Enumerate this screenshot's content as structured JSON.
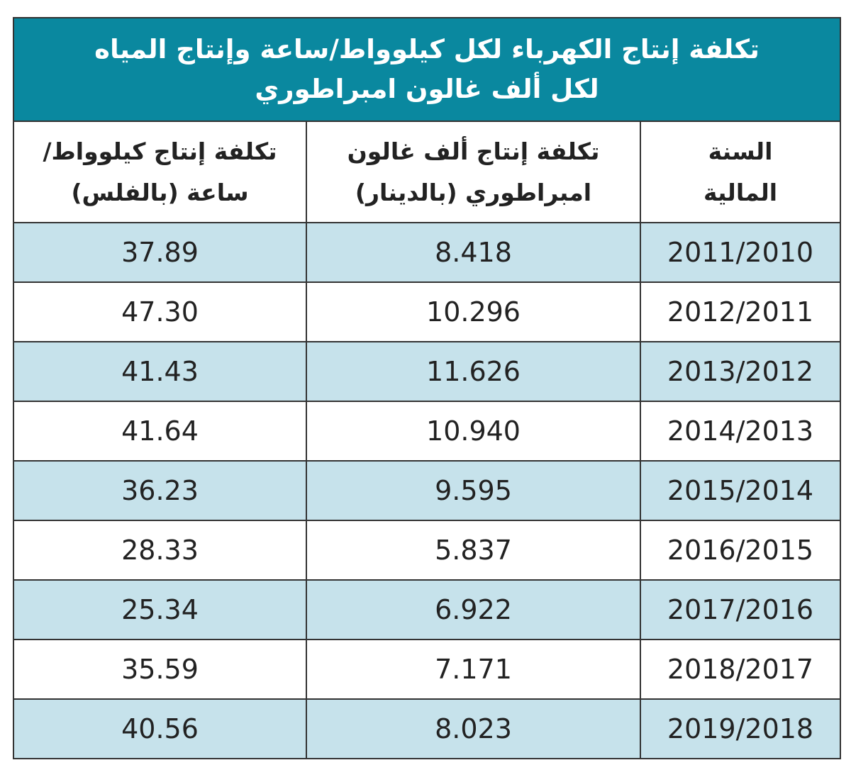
{
  "header": {
    "title_lines": [
      "تكلفة إنتاج الكهرباء لكل كيلوواط/ساعة وإنتاج المياه",
      "لكل ألف غالون امبراطوري"
    ]
  },
  "table": {
    "columns": [
      [
        "السنة",
        "المالية"
      ],
      [
        "تكلفة إنتاج ألف غالون",
        "امبراطوري (بالدينار)"
      ],
      [
        "تكلفة إنتاج كيلوواط/",
        "ساعة (بالفلس)"
      ]
    ],
    "rows": [
      [
        "2011/2010",
        "8.418",
        "37.89"
      ],
      [
        "2012/2011",
        "10.296",
        "47.30"
      ],
      [
        "2013/2012",
        "11.626",
        "41.43"
      ],
      [
        "2014/2013",
        "10.940",
        "41.64"
      ],
      [
        "2015/2014",
        "9.595",
        "36.23"
      ],
      [
        "2016/2015",
        "5.837",
        "28.33"
      ],
      [
        "2017/2016",
        "6.922",
        "25.34"
      ],
      [
        "2018/2017",
        "7.171",
        "35.59"
      ],
      [
        "2019/2018",
        "8.023",
        "40.56"
      ]
    ]
  }
}
